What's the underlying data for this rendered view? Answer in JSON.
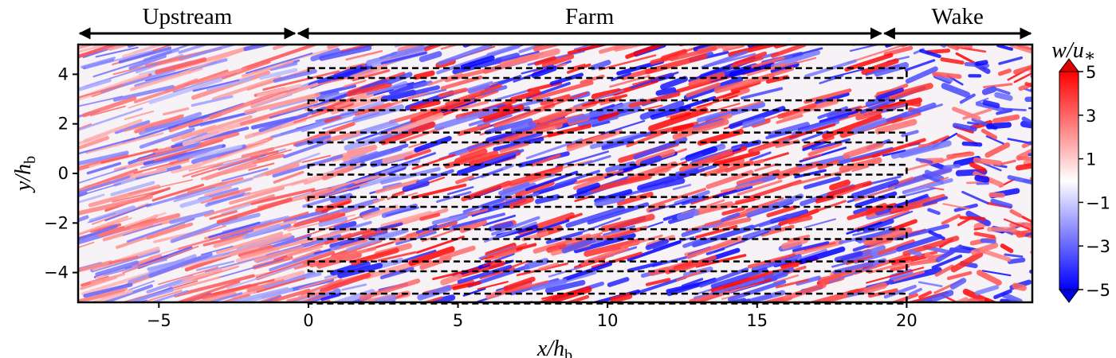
{
  "chart_data": {
    "type": "heatmap",
    "title": "",
    "xlabel": {
      "main": "x/h",
      "sub": "b"
    },
    "ylabel": {
      "main": "y/h",
      "sub": "b"
    },
    "xlim": [
      -7.7,
      24.2
    ],
    "ylim": [
      -5.2,
      5.2
    ],
    "xticks": [
      -5,
      0,
      5,
      10,
      15,
      20
    ],
    "yticks": [
      -4,
      -2,
      0,
      2,
      4
    ],
    "xtick_labels": [
      "−5",
      "0",
      "5",
      "10",
      "15",
      "20"
    ],
    "ytick_labels": [
      "−4",
      "−2",
      "0",
      "2",
      "4"
    ],
    "colorbar": {
      "label": {
        "main": "w/u",
        "sub": "∗"
      },
      "range": [
        -5,
        5
      ],
      "ticks": [
        5,
        3,
        1,
        -1,
        -3,
        -5
      ],
      "tick_labels": [
        "5",
        "3",
        "1",
        "−1",
        "−3",
        "−5"
      ],
      "colors": [
        "#0000ff",
        "#ffffff",
        "#ff0000"
      ],
      "extend": "both"
    },
    "regions": [
      {
        "label": "Upstream",
        "x_start": -7.7,
        "x_end": -0.4
      },
      {
        "label": "Farm",
        "x_start": -0.4,
        "x_end": 19.2
      },
      {
        "label": "Wake",
        "x_start": 19.2,
        "x_end": 24.2
      }
    ],
    "turbine_rows": [
      {
        "x_start": 0,
        "x_end": 20,
        "y_low": 3.85,
        "y_high": 4.25
      },
      {
        "x_start": 0,
        "x_end": 20,
        "y_low": 2.55,
        "y_high": 2.95
      },
      {
        "x_start": 0,
        "x_end": 20,
        "y_low": 1.25,
        "y_high": 1.65
      },
      {
        "x_start": 0,
        "x_end": 20,
        "y_low": -0.05,
        "y_high": 0.35
      },
      {
        "x_start": 0,
        "x_end": 20,
        "y_low": -1.35,
        "y_high": -0.95
      },
      {
        "x_start": 0,
        "x_end": 20,
        "y_low": -2.65,
        "y_high": -2.25
      },
      {
        "x_start": 0,
        "x_end": 20,
        "y_low": -3.95,
        "y_high": -3.55
      },
      {
        "x_start": 0,
        "x_end": 20,
        "y_low": -5.25,
        "y_high": -4.85
      }
    ]
  }
}
